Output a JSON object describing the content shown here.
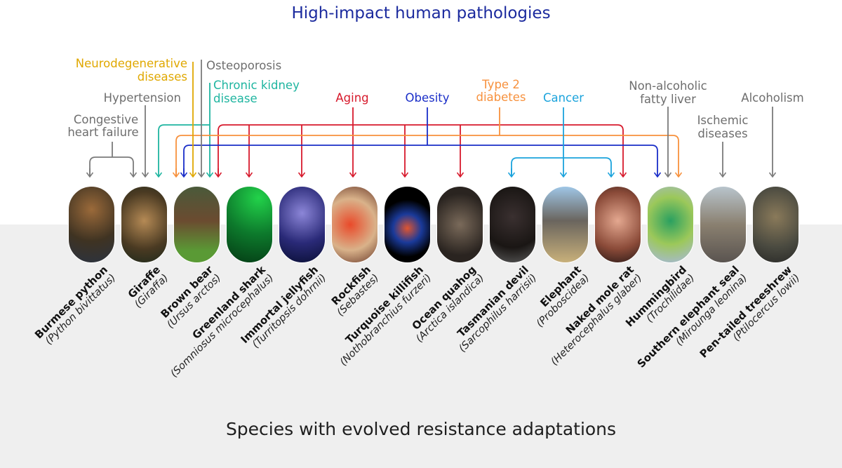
{
  "title": "High-impact human pathologies",
  "footer": "Species with evolved resistance adaptations",
  "colors": {
    "title": "#1b2a9e",
    "gray": "#7b7b7b",
    "neuro": "#e0a800",
    "kidney": "#1fb5a0",
    "aging": "#d71a2c",
    "obesity": "#1a2ec8",
    "diabetes": "#f7913d",
    "cancer": "#1ba3dc",
    "background_lower": "#efefef"
  },
  "pathologies": {
    "neuro": [
      "Neurodegenerative",
      "diseases"
    ],
    "osteoporosis": "Osteoporosis",
    "hypertension": "Hypertension",
    "kidney": [
      "Chronic kidney",
      "disease"
    ],
    "chf": [
      "Congestive",
      "heart failure"
    ],
    "aging": "Aging",
    "obesity": "Obesity",
    "diabetes": [
      "Type 2",
      "diabetes"
    ],
    "cancer": "Cancer",
    "nafld": [
      "Non-alcoholic",
      "fatty liver"
    ],
    "ischemic": [
      "Ischemic",
      "diseases"
    ],
    "alcoholism": "Alcoholism"
  },
  "species": [
    {
      "common": "Burmese python",
      "scientific": "(Python bivittatus)",
      "resists": [
        "Congestive heart failure"
      ]
    },
    {
      "common": "Giraffe",
      "scientific": "(Giraffa)",
      "resists": [
        "Congestive heart failure",
        "Hypertension"
      ]
    },
    {
      "common": "Brown bear",
      "scientific": "(Ursus arctos)",
      "resists": [
        "Chronic kidney disease",
        "Type 2 diabetes",
        "Obesity",
        "Neurodegenerative diseases",
        "Osteoporosis",
        "Aging"
      ]
    },
    {
      "common": "Greenland shark",
      "scientific": "(Somniosus microcephalus)",
      "resists": [
        "Aging"
      ]
    },
    {
      "common": "Immortal jellyfish",
      "scientific": "(Turritopsis dohrnii)",
      "resists": [
        "Aging"
      ]
    },
    {
      "common": "Rockfish",
      "scientific": "(Sebastes)",
      "resists": [
        "Aging"
      ]
    },
    {
      "common": "Turquoise killifish",
      "scientific": "(Nothobranchius furzeri)",
      "resists": [
        "Aging"
      ]
    },
    {
      "common": "Ocean quahog",
      "scientific": "(Arctica islandica)",
      "resists": [
        "Aging"
      ]
    },
    {
      "common": "Tasmanian devil",
      "scientific": "(Sarcophilus harrisii)",
      "resists": [
        "Cancer"
      ]
    },
    {
      "common": "Elephant",
      "scientific": "(Proboscidea)",
      "resists": [
        "Cancer"
      ]
    },
    {
      "common": "Naked mole rat",
      "scientific": "(Heterocephalus glaber)",
      "resists": [
        "Cancer",
        "Aging"
      ]
    },
    {
      "common": "Hummingbird",
      "scientific": "(Trochilidae)",
      "resists": [
        "Obesity",
        "Non-alcoholic fatty liver",
        "Type 2 diabetes"
      ]
    },
    {
      "common": "Southern elephant seal",
      "scientific": "(Mirounga leonina)",
      "resists": [
        "Ischemic diseases"
      ]
    },
    {
      "common": "Pen-tailed treeshrew",
      "scientific": "(Ptilocercus lowii)",
      "resists": [
        "Alcoholism"
      ]
    }
  ]
}
